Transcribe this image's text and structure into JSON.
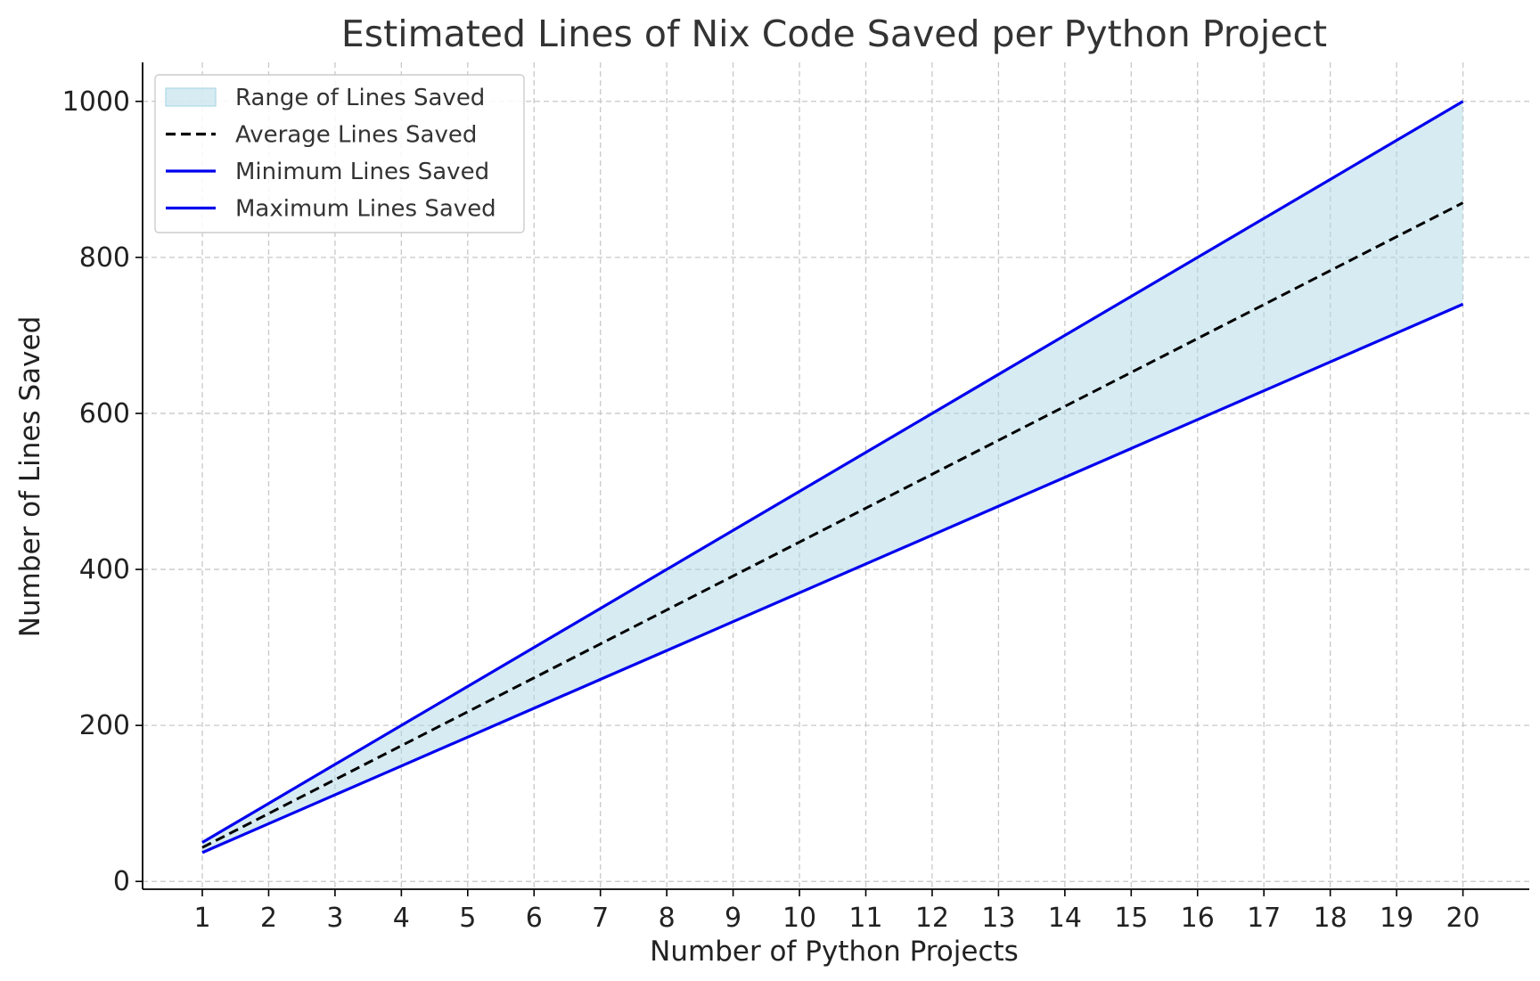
{
  "chart_data": {
    "type": "line",
    "title": "Estimated Lines of Nix Code Saved per Python Project",
    "xlabel": "Number of Python Projects",
    "ylabel": "Number of Lines Saved",
    "x": [
      1,
      2,
      3,
      4,
      5,
      6,
      7,
      8,
      9,
      10,
      11,
      12,
      13,
      14,
      15,
      16,
      17,
      18,
      19,
      20
    ],
    "xlim": [
      0.1,
      21
    ],
    "ylim": [
      -10,
      1050
    ],
    "yticks": [
      0,
      200,
      400,
      600,
      800,
      1000
    ],
    "grid": true,
    "legend_position": "top-left",
    "series": [
      {
        "name": "Minimum Lines Saved",
        "style": "solid",
        "color": "#0000ee",
        "values": [
          37,
          74,
          111,
          148,
          185,
          222,
          259,
          296,
          333,
          370,
          407,
          444,
          481,
          518,
          555,
          592,
          629,
          666,
          703,
          740
        ]
      },
      {
        "name": "Maximum Lines Saved",
        "style": "solid",
        "color": "#0000ee",
        "values": [
          50,
          100,
          150,
          200,
          250,
          300,
          350,
          400,
          450,
          500,
          550,
          600,
          650,
          700,
          750,
          800,
          850,
          900,
          950,
          1000
        ]
      },
      {
        "name": "Average Lines Saved",
        "style": "dashed",
        "color": "#000000",
        "values": [
          43.5,
          87,
          130.5,
          174,
          217.5,
          261,
          304.5,
          348,
          391.5,
          435,
          478.5,
          522,
          565.5,
          609,
          652.5,
          696,
          739.5,
          783,
          826.5,
          870
        ]
      }
    ],
    "fill_between": {
      "name": "Range of Lines Saved",
      "color": "#add8e6",
      "lower_series": "Minimum Lines Saved",
      "upper_series": "Maximum Lines Saved"
    },
    "legend": [
      {
        "label": "Range of Lines Saved",
        "kind": "fill",
        "color": "#add8e6"
      },
      {
        "label": "Average Lines Saved",
        "kind": "dashed",
        "color": "#000000"
      },
      {
        "label": "Minimum Lines Saved",
        "kind": "solid",
        "color": "#0000ee"
      },
      {
        "label": "Maximum Lines Saved",
        "kind": "solid",
        "color": "#0000ee"
      }
    ]
  }
}
